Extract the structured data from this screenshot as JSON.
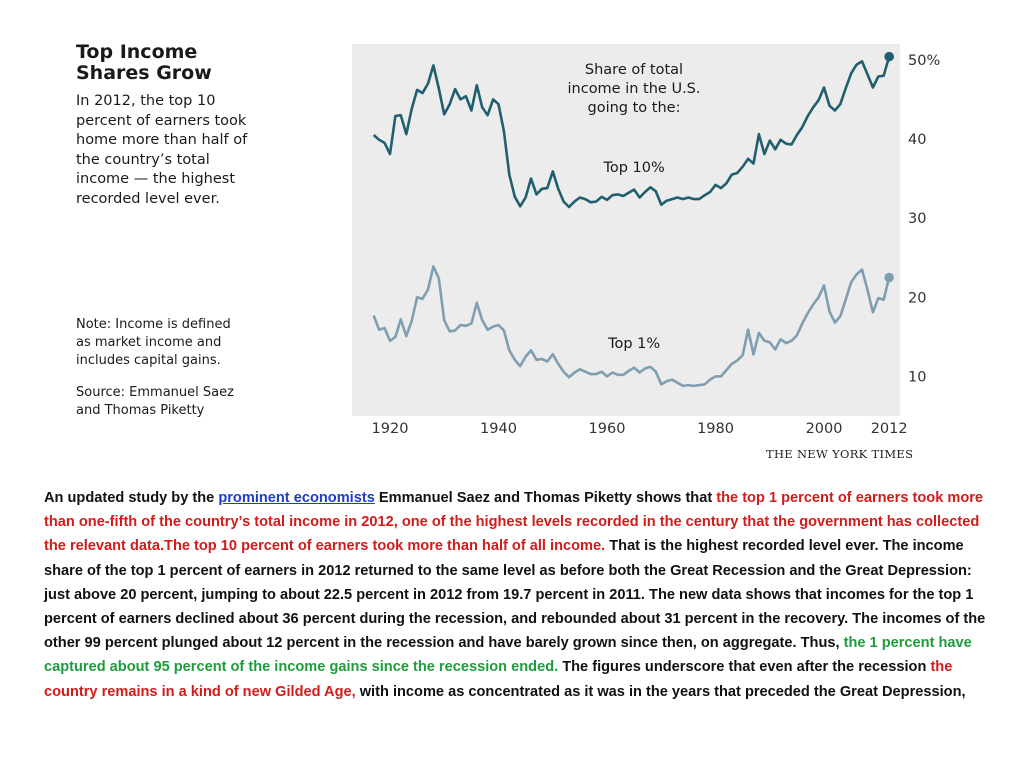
{
  "sidebar": {
    "title": "Top Income\nShares Grow",
    "description": "In 2012, the top 10\npercent of earners took\nhome more than half of\nthe country’s total\nincome — the highest\nrecorded level ever.",
    "note": "Note: Income is defined\nas market income and\nincludes capital gains.",
    "source": "Source: Emmanuel Saez\nand Thomas Piketty"
  },
  "credit": "THE NEW YORK TIMES",
  "chart_data": {
    "type": "line",
    "title": "Share of total\nincome in the U.S.\ngoing to the:",
    "xlabel": "",
    "ylabel": "",
    "xlim": [
      1913,
      2014
    ],
    "ylim": [
      5,
      52
    ],
    "x_ticks": [
      1920,
      1940,
      1960,
      1980,
      2000,
      2012
    ],
    "x_tick_labels": [
      "1920",
      "1940",
      "1960",
      "1980",
      "2000",
      "2012"
    ],
    "y_ticks": [
      10,
      20,
      30,
      40,
      50
    ],
    "y_tick_labels": [
      "10",
      "20",
      "30",
      "40",
      "50%"
    ],
    "grid": false,
    "legend": "none",
    "background": "#ececec",
    "series": [
      {
        "name": "Top 10%",
        "color": "#1f5f6e",
        "x": [
          1917,
          1918,
          1919,
          1920,
          1921,
          1922,
          1923,
          1924,
          1925,
          1926,
          1927,
          1928,
          1929,
          1930,
          1931,
          1932,
          1933,
          1934,
          1935,
          1936,
          1937,
          1938,
          1939,
          1940,
          1941,
          1942,
          1943,
          1944,
          1945,
          1946,
          1947,
          1948,
          1949,
          1950,
          1951,
          1952,
          1953,
          1954,
          1955,
          1956,
          1957,
          1958,
          1959,
          1960,
          1961,
          1962,
          1963,
          1964,
          1965,
          1966,
          1967,
          1968,
          1969,
          1970,
          1971,
          1972,
          1973,
          1974,
          1975,
          1976,
          1977,
          1978,
          1979,
          1980,
          1981,
          1982,
          1983,
          1984,
          1985,
          1986,
          1987,
          1988,
          1989,
          1990,
          1991,
          1992,
          1993,
          1994,
          1995,
          1996,
          1997,
          1998,
          1999,
          2000,
          2001,
          2002,
          2003,
          2004,
          2005,
          2006,
          2007,
          2008,
          2009,
          2010,
          2011,
          2012
        ],
        "values": [
          40.5,
          39.9,
          39.5,
          38.1,
          42.9,
          43.0,
          40.6,
          43.8,
          46.2,
          45.8,
          47.0,
          49.3,
          46.4,
          43.1,
          44.4,
          46.3,
          45.0,
          45.4,
          43.6,
          46.8,
          44.0,
          43.0,
          45.0,
          44.4,
          41.0,
          35.5,
          32.7,
          31.5,
          32.6,
          35.0,
          33.0,
          33.7,
          33.8,
          35.9,
          33.7,
          32.1,
          31.4,
          32.1,
          32.6,
          32.4,
          32.0,
          32.1,
          32.7,
          32.3,
          32.9,
          33.0,
          32.8,
          33.2,
          33.6,
          32.6,
          33.3,
          33.9,
          33.4,
          31.7,
          32.2,
          32.4,
          32.6,
          32.4,
          32.6,
          32.4,
          32.4,
          32.9,
          33.3,
          34.2,
          33.8,
          34.4,
          35.5,
          35.7,
          36.5,
          37.5,
          36.9,
          40.6,
          38.1,
          39.8,
          38.7,
          39.9,
          39.4,
          39.3,
          40.5,
          41.5,
          42.9,
          44.0,
          44.9,
          46.5,
          44.2,
          43.6,
          44.4,
          46.4,
          48.3,
          49.4,
          49.8,
          48.2,
          46.5,
          47.9,
          48.0,
          50.4
        ]
      },
      {
        "name": "Top 1%",
        "color": "#7f9fb0",
        "x": [
          1917,
          1918,
          1919,
          1920,
          1921,
          1922,
          1923,
          1924,
          1925,
          1926,
          1927,
          1928,
          1929,
          1930,
          1931,
          1932,
          1933,
          1934,
          1935,
          1936,
          1937,
          1938,
          1939,
          1940,
          1941,
          1942,
          1943,
          1944,
          1945,
          1946,
          1947,
          1948,
          1949,
          1950,
          1951,
          1952,
          1953,
          1954,
          1955,
          1956,
          1957,
          1958,
          1959,
          1960,
          1961,
          1962,
          1963,
          1964,
          1965,
          1966,
          1967,
          1968,
          1969,
          1970,
          1971,
          1972,
          1973,
          1974,
          1975,
          1976,
          1977,
          1978,
          1979,
          1980,
          1981,
          1982,
          1983,
          1984,
          1985,
          1986,
          1987,
          1988,
          1989,
          1990,
          1991,
          1992,
          1993,
          1994,
          1995,
          1996,
          1997,
          1998,
          1999,
          2000,
          2001,
          2002,
          2003,
          2004,
          2005,
          2006,
          2007,
          2008,
          2009,
          2010,
          2011,
          2012
        ],
        "values": [
          17.7,
          15.9,
          16.1,
          14.5,
          15.0,
          17.2,
          15.1,
          17.0,
          20.0,
          19.8,
          21.0,
          23.9,
          22.4,
          17.1,
          15.7,
          15.8,
          16.5,
          16.4,
          16.7,
          19.3,
          17.1,
          15.9,
          16.3,
          16.5,
          15.8,
          13.3,
          12.1,
          11.3,
          12.5,
          13.3,
          12.1,
          12.2,
          11.9,
          12.8,
          11.6,
          10.6,
          9.9,
          10.5,
          10.9,
          10.6,
          10.3,
          10.3,
          10.6,
          10.0,
          10.5,
          10.2,
          10.2,
          10.7,
          11.1,
          10.5,
          11.0,
          11.2,
          10.6,
          9.0,
          9.4,
          9.6,
          9.2,
          8.8,
          8.9,
          8.8,
          8.9,
          9.0,
          9.6,
          10.0,
          10.0,
          10.8,
          11.6,
          12.0,
          12.7,
          15.9,
          12.8,
          15.5,
          14.5,
          14.3,
          13.4,
          14.7,
          14.2,
          14.5,
          15.2,
          16.7,
          18.0,
          19.1,
          20.0,
          21.5,
          18.2,
          16.8,
          17.6,
          19.7,
          21.9,
          22.9,
          23.5,
          21.0,
          18.1,
          19.9,
          19.7,
          22.5
        ]
      }
    ],
    "annotations": [
      {
        "text": "Top 10%",
        "x": 1965,
        "y": 35.8
      },
      {
        "text": "Top 1%",
        "x": 1965,
        "y": 13.6
      }
    ]
  },
  "article": {
    "p1": "An updated study by the ",
    "link": "prominent economists",
    "p2": " Emmanuel Saez and Thomas Piketty shows that ",
    "red1": "the top 1 percent of earners took more than one-fifth of the country’s total income in 2012, one of the highest levels recorded in the century that the government has collected the relevant data.The top 10 percent of earners took more than half of all income.",
    "p3": " That is the highest recorded level ever. The income share of the top 1 percent of earners in 2012 returned to the same level as before both the Great Recession and the Great Depression: just above 20 percent, jumping to about 22.5 percent in 2012 from 19.7 percent in 2011. The new data shows that incomes for the top 1 percent of earners declined about 36 percent during the recession, and rebounded about 31 percent in the recovery. The incomes of the other 99 percent plunged about 12 percent in the recession and have barely grown since then, on aggregate. Thus, ",
    "green1": "the 1 percent have captured about 95 percent of the income gains since the recession ended.",
    "p4": " The figures underscore that even after the recession ",
    "red2": "the country remains in a kind of new Gilded Age,",
    "p5": " with income as concentrated as it was in the years that preceded the Great Depression,"
  }
}
